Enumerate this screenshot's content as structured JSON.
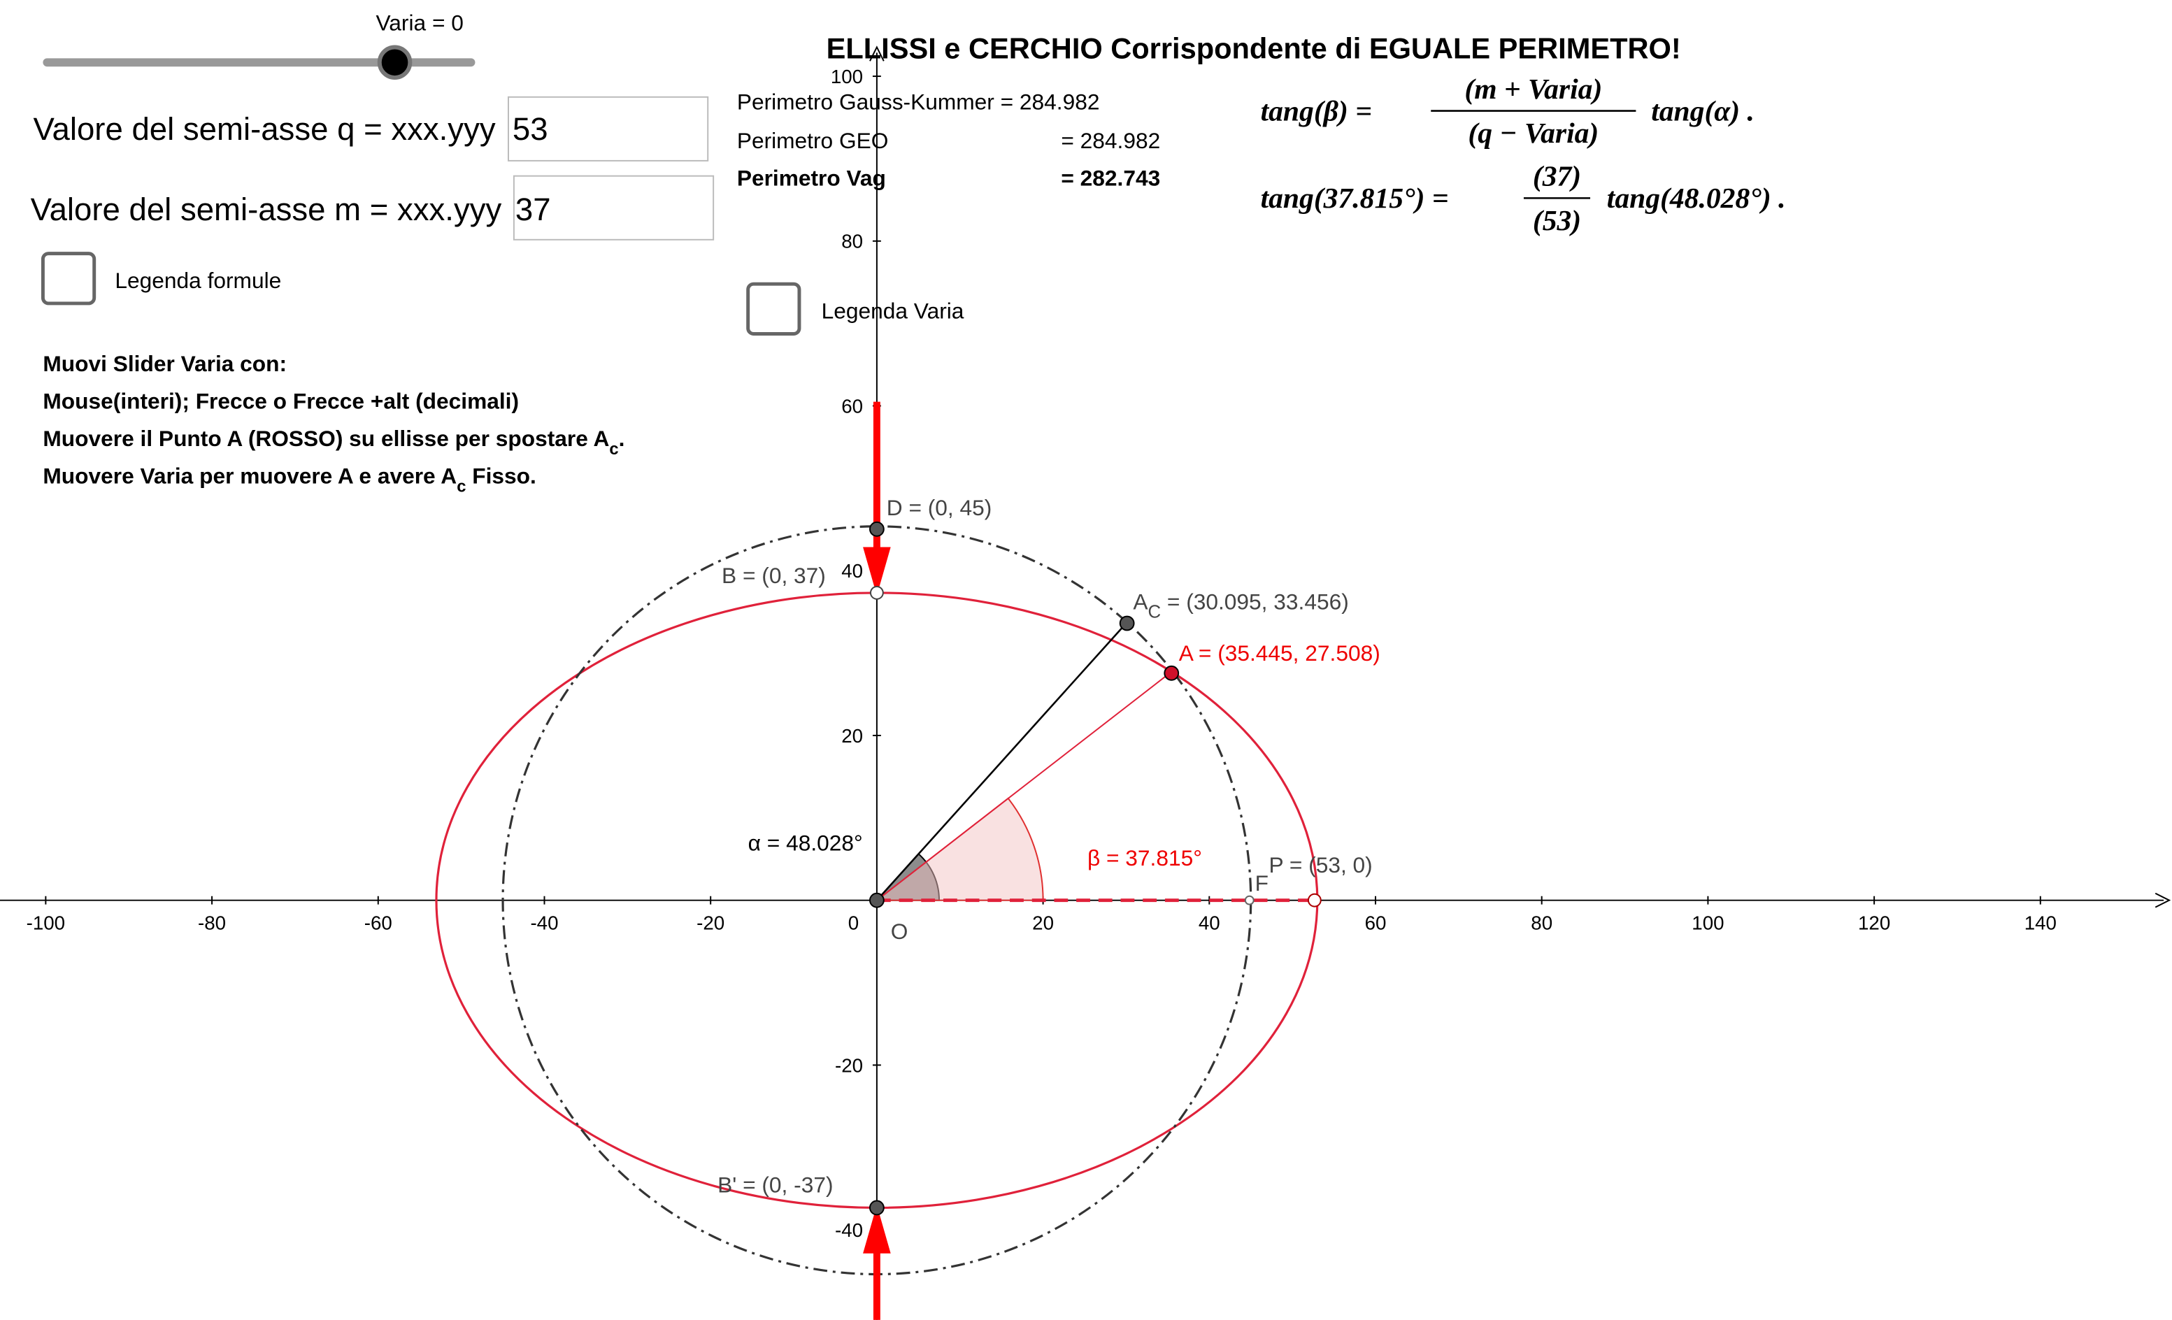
{
  "slider": {
    "label": "Varia = 0"
  },
  "inputs": [
    {
      "label": "Valore del semi-asse q = xxx.yyy",
      "value": "53"
    },
    {
      "label": "Valore del semi-asse m = xxx.yyy",
      "value": "37"
    }
  ],
  "checkboxes": [
    {
      "label": "Legenda formule"
    },
    {
      "label": "Legenda Varia"
    }
  ],
  "title": "ELLISSI e CERCHIO Corrispondente di EGUALE PERIMETRO!",
  "perimeters": [
    {
      "label": "Perimetro Gauss-Kummer = 284.982"
    },
    {
      "label": "Perimetro GEO",
      "value": "= 284.982"
    },
    {
      "label": "Perimetro Vag",
      "value": "=  282.743"
    }
  ],
  "instructions": [
    {
      "text": "Muovi Slider Varia con:"
    },
    {
      "text": "Mouse(interi); Frecce o Frecce +alt (decimali)"
    },
    {
      "text": "Muovere il Punto A (ROSSO)  su ellisse per spostare A",
      "sub": "c",
      "after": "."
    },
    {
      "text": "Muovere Varia per muovere A e avere A",
      "sub": "c",
      "after": " Fisso."
    }
  ],
  "formulas": [
    {
      "left": "tang(β) =",
      "numerator": "(m + Varia)",
      "denominator": "(q − Varia)",
      "right": "tang(α) ."
    },
    {
      "left": "tang(37.815°) =",
      "numerator": "(37)",
      "denominator": "(53)",
      "right": "tang(48.028°) ."
    }
  ],
  "axes": {
    "xticks": [
      -100,
      -80,
      -60,
      -40,
      -20,
      20,
      40,
      60,
      80,
      100,
      120,
      140
    ],
    "yticks": [
      -40,
      -20,
      20,
      40,
      60,
      80,
      100
    ],
    "origin": "0"
  },
  "points": {
    "D": "D = (0, 45)",
    "B": "B = (0, 37)",
    "B1": "B' = (0, -37)",
    "A": "A = (35.445, 27.508)",
    "Ac": {
      "text": "A",
      "sub": "C",
      "after": " = (30.095, 33.456)"
    },
    "P": "P = (53, 0)",
    "F": "F",
    "O": "O"
  },
  "angles": {
    "alpha": "α = 48.028°",
    "beta": "β = 37.815°"
  }
}
